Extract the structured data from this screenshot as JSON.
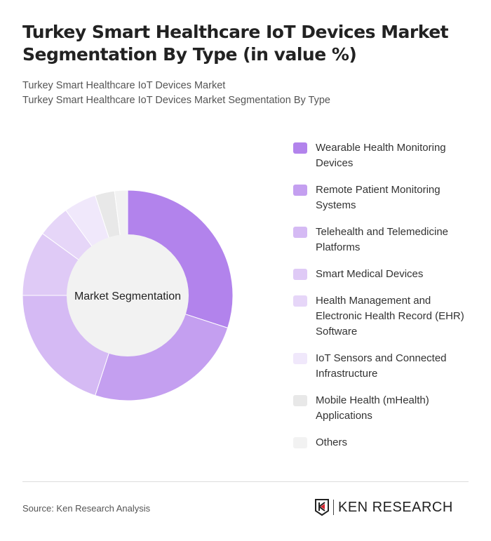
{
  "title": "Turkey Smart Healthcare IoT Devices Market Segmentation By Type (in value %)",
  "subtitle1": "Turkey Smart Healthcare IoT Devices Market",
  "subtitle2": "Turkey Smart Healthcare IoT Devices Market Segmentation By Type",
  "source": "Source: Ken Research Analysis",
  "logo_text": "KEN RESEARCH",
  "chart_data": {
    "type": "pie",
    "variant": "donut",
    "center_label": "Market Segmentation",
    "legend_position": "right",
    "categories": [
      "Wearable Health Monitoring Devices",
      "Remote Patient Monitoring Systems",
      "Telehealth and Telemedicine Platforms",
      "Smart Medical Devices",
      "Health Management and Electronic Health Record (EHR) Software",
      "IoT Sensors and Connected Infrastructure",
      "Mobile Health (mHealth) Applications",
      "Others"
    ],
    "values": [
      30,
      25,
      20,
      10,
      5,
      5,
      3,
      2
    ],
    "colors": [
      "#b283ec",
      "#c49ff0",
      "#d5baf4",
      "#dfcaf6",
      "#e6d6f8",
      "#f0e8fb",
      "#e8e8e8",
      "#f2f2f2"
    ]
  }
}
